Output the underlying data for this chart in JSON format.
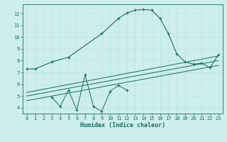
{
  "xlabel": "Humidex (Indice chaleur)",
  "bg_color": "#ceeeed",
  "grid_color": "#b8e8e8",
  "line_color": "#1a6b62",
  "xlim": [
    -0.5,
    23.5
  ],
  "ylim": [
    3.5,
    12.8
  ],
  "xticks": [
    0,
    1,
    2,
    3,
    4,
    5,
    6,
    7,
    8,
    9,
    10,
    11,
    12,
    13,
    14,
    15,
    16,
    17,
    18,
    19,
    20,
    21,
    22,
    23
  ],
  "yticks": [
    4,
    5,
    6,
    7,
    8,
    9,
    10,
    11,
    12
  ],
  "main_curve_x": [
    0,
    1,
    3,
    5,
    9,
    11,
    12,
    13,
    14,
    15,
    16,
    17,
    18,
    19,
    20,
    21,
    22,
    23
  ],
  "main_curve_y": [
    7.3,
    7.3,
    7.9,
    8.3,
    10.3,
    11.6,
    12.05,
    12.3,
    12.35,
    12.3,
    11.6,
    10.3,
    8.6,
    7.9,
    7.7,
    7.8,
    7.4,
    8.5
  ],
  "zigzag_x": [
    3,
    4,
    5,
    6,
    7,
    8,
    9,
    10,
    11,
    12
  ],
  "zigzag_y": [
    4.9,
    4.1,
    5.5,
    3.8,
    6.8,
    4.1,
    3.7,
    5.4,
    5.9,
    5.5
  ],
  "line1_x": [
    0,
    23
  ],
  "line1_y": [
    4.6,
    7.6
  ],
  "line2_x": [
    0,
    23
  ],
  "line2_y": [
    5.0,
    8.0
  ],
  "line3_x": [
    0,
    23
  ],
  "line3_y": [
    5.3,
    8.4
  ]
}
